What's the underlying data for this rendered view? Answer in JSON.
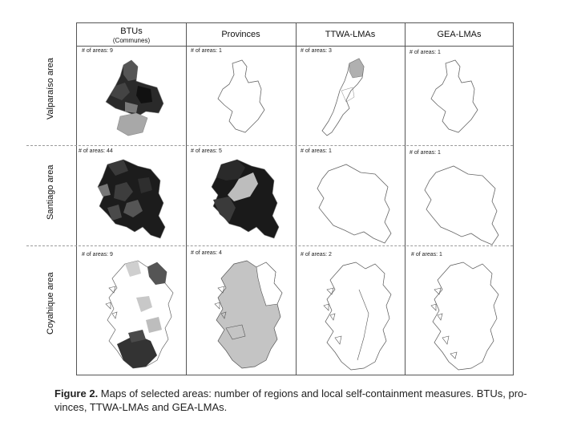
{
  "columns": [
    "BTUs",
    "Provinces",
    "TTWA-LMAs",
    "GEA-LMAs"
  ],
  "column_sub": "(Communes)",
  "rows": [
    "Valparaíso area",
    "Santiago area",
    "Coyahique area"
  ],
  "counts": [
    [
      "# of areas: 9",
      "# of areas: 1",
      "# of areas: 3",
      "# of areas: 1"
    ],
    [
      "# of areas: 44",
      "# of areas: 5",
      "# of areas: 1",
      "# of areas: 1"
    ],
    [
      "# of areas: 9",
      "# of areas: 4",
      "# of areas: 2",
      "# of areas: 1"
    ]
  ],
  "caption": {
    "label": "Figure 2.",
    "line1": " Maps of selected areas: number of regions and local self-containment measures. BTUs, pro-",
    "line2": "vinces, TTWA-LMAs and GEA-LMAs."
  }
}
